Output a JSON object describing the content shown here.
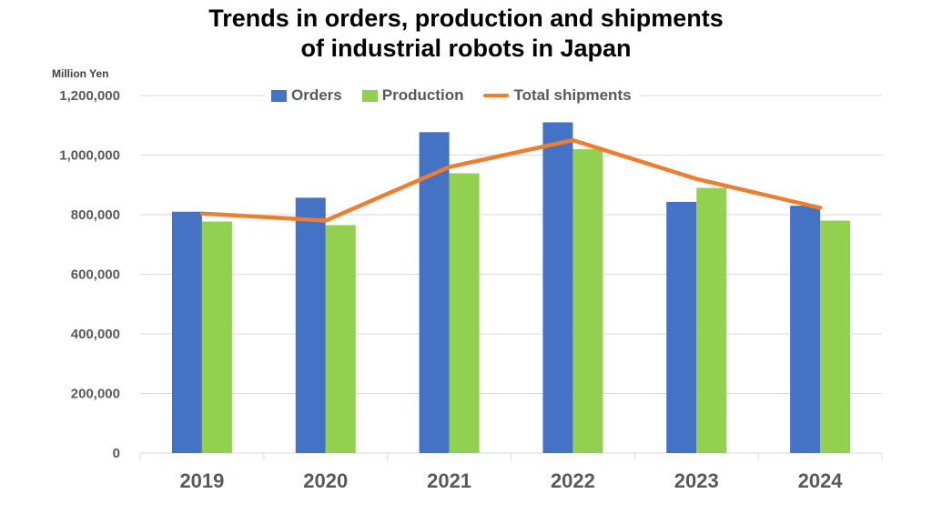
{
  "chart": {
    "title_line1": "Trends in orders, production and shipments",
    "title_line2": "of industrial robots in Japan",
    "unit_label": "Million Yen"
  },
  "colors": {
    "orders": "#4472C4",
    "production": "#92D050",
    "shipments": "#ED7D31",
    "grid": "#D9D9D9",
    "axis_text": "#595959"
  },
  "chart_data": {
    "type": "bar",
    "title": "Trends in orders, production and shipments of industrial robots in Japan",
    "ylabel": "Million Yen",
    "xlabel": "",
    "categories": [
      "2019",
      "2020",
      "2021",
      "2022",
      "2023",
      "2024"
    ],
    "ylim": [
      0,
      1200000
    ],
    "yticks": [
      0,
      200000,
      400000,
      600000,
      800000,
      1000000,
      1200000
    ],
    "ytick_labels": [
      "0",
      "200,000",
      "400,000",
      "600,000",
      "800,000",
      "1,000,000",
      "1,200,000"
    ],
    "grid": true,
    "legend_position": "top",
    "series": [
      {
        "name": "Orders",
        "type": "bar",
        "values": [
          810000,
          857000,
          1077000,
          1110000,
          843000,
          830000
        ]
      },
      {
        "name": "Production",
        "type": "bar",
        "values": [
          777000,
          765000,
          939000,
          1020000,
          890000,
          780000
        ]
      },
      {
        "name": "Total shipments",
        "type": "line",
        "values": [
          804000,
          780000,
          960000,
          1050000,
          920000,
          823000
        ]
      }
    ]
  }
}
